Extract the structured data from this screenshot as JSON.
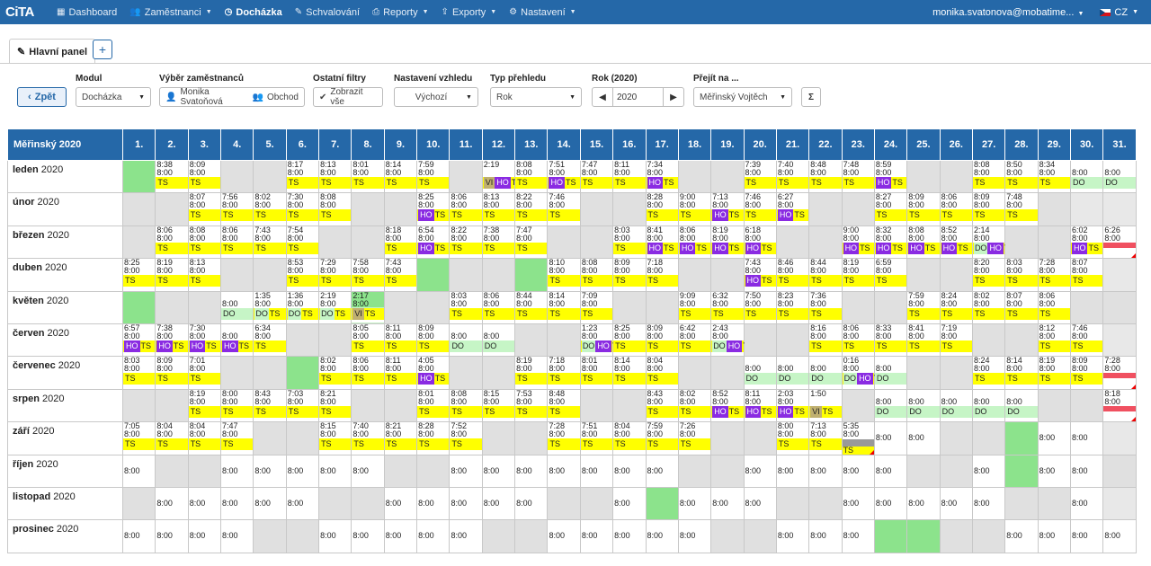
{
  "nav": {
    "logo": "CiTA",
    "items": [
      {
        "label": "Dashboard",
        "icon": "grid-icon",
        "caret": false
      },
      {
        "label": "Zaměstnanci",
        "icon": "users-icon",
        "caret": true
      },
      {
        "label": "Docházka",
        "icon": "clock-icon",
        "caret": false,
        "active": true
      },
      {
        "label": "Schvalování",
        "icon": "check-icon",
        "caret": false
      },
      {
        "label": "Reporty",
        "icon": "print-icon",
        "caret": true
      },
      {
        "label": "Exporty",
        "icon": "export-icon",
        "caret": true
      },
      {
        "label": "Nastavení",
        "icon": "gear-icon",
        "caret": true
      }
    ],
    "user": "monika.svatonova@mobatime...",
    "lang": "CZ"
  },
  "tabs": {
    "main_label": "Hlavní panel",
    "add_label": "+"
  },
  "filters": {
    "back_label": "Zpět",
    "modul_label": "Modul",
    "modul_value": "Docházka",
    "employee_label": "Výběr zaměstnanců",
    "employee_name": "Monika Svatoňová",
    "employee_group": "Obchod",
    "other_label": "Ostatní filtry",
    "other_button": "Zobrazit vše",
    "view_label": "Nastavení vzhledu",
    "view_value": "Výchozí",
    "type_label": "Typ přehledu",
    "type_value": "Rok",
    "year_label": "Rok (2020)",
    "year_value": "2020",
    "goto_label": "Přejít na ...",
    "goto_value": "Měřinský Vojtěch",
    "sigma": "Σ"
  },
  "grid": {
    "header_name": "Měřinský",
    "header_year": "2020",
    "days": [
      "1.",
      "2.",
      "3.",
      "4.",
      "5.",
      "6.",
      "7.",
      "8.",
      "9.",
      "10.",
      "11.",
      "12.",
      "13.",
      "14.",
      "15.",
      "16.",
      "17.",
      "18.",
      "19.",
      "20.",
      "21.",
      "22.",
      "23.",
      "24.",
      "25.",
      "26.",
      "27.",
      "28.",
      "29.",
      "30.",
      "31."
    ],
    "months": [
      {
        "name": "leden",
        "year": "2020",
        "cells": [
          "G",
          "8:38|8:00|TS",
          "8:09|8:00|TS",
          "W",
          "W",
          "8:17|8:00|TS",
          "8:13|8:00|TS",
          "8:01|8:00|TS",
          "8:14|8:00|TS",
          "7:59|8:00|TS",
          "W",
          "2:19||VI,HO,TS",
          "8:08|8:00|TS",
          "7:51|8:00|HO,TS",
          "7:47|8:00|TS",
          "8:11|8:00|TS",
          "7:34|8:00|HO,TS",
          "W",
          "W",
          "7:39|8:00|TS",
          "7:40|8:00|TS",
          "8:48|8:00|TS",
          "7:48|8:00|TS",
          "8:59|8:00|HO,TS",
          "W",
          "W",
          "8:08|8:00|TS",
          "8:50|8:00|TS",
          "8:34|8:00|TS",
          "|8:00|DO",
          "|8:00|DO"
        ]
      },
      {
        "name": "únor",
        "year": "2020",
        "cells": [
          "W",
          "W",
          "8:07|8:00|TS",
          "7:56|8:00|TS",
          "8:02|8:00|TS",
          "7:30|8:00|TS",
          "8:08|8:00|TS",
          "W",
          "W",
          "8:25|8:00|HO,TS",
          "8:06|8:00|TS",
          "8:13|8:00|TS",
          "8:22|8:00|TS",
          "7:46|8:00|TS",
          "W",
          "W",
          "8:28|8:00|TS",
          "9:00|8:00|TS",
          "7:13|8:00|HO,TS",
          "7:46|8:00|TS",
          "6:27|8:00|HO,TS",
          "W",
          "W",
          "8:27|8:00|TS",
          "8:09|8:00|TS",
          "8:06|8:00|TS",
          "8:09|8:00|TS",
          "7:48|8:00|TS",
          "W",
          "E",
          "E"
        ]
      },
      {
        "name": "březen",
        "year": "2020",
        "cells": [
          "W",
          "8:06|8:00|TS",
          "8:08|8:00|TS",
          "8:06|8:00|TS",
          "7:43|8:00|TS",
          "7:54|8:00|TS",
          "W",
          "W",
          "8:18|8:00|TS",
          "6:54|8:00|HO,TS",
          "8:22|8:00|TS",
          "7:38|8:00|TS",
          "7:47|8:00|TS",
          "W",
          "W",
          "8:03|8:00|TS",
          "8:41|8:00|HO,TS",
          "8:06|8:00|HO,TS",
          "8:19|8:00|HO,TS",
          "6:18|8:00|HO,TS",
          "W",
          "W",
          "9:00|8:00|HO,TS",
          "8:32|8:00|HO,TS",
          "8:08|8:00|HO,TS",
          "8:52|8:00|HO,TS",
          "2:14|8:00|DO,HO,TS",
          "W",
          "W",
          "6:02|8:00|HO,TS",
          "6:26|8:00|RED"
        ]
      },
      {
        "name": "duben",
        "year": "2020",
        "cells": [
          "8:25|8:00|TS",
          "8:19|8:00|TS",
          "8:13|8:00|TS",
          "W",
          "W",
          "8:53|8:00|TS",
          "7:29|8:00|TS",
          "7:58|8:00|TS",
          "7:43|8:00|TS",
          "G",
          "W",
          "W",
          "G",
          "8:10|8:00|TS",
          "8:08|8:00|TS",
          "8:09|8:00|TS",
          "7:18|8:00|TS",
          "W",
          "W",
          "7:43|8:00|HO,TS",
          "8:46|8:00|TS",
          "8:44|8:00|TS",
          "8:19|8:00|TS",
          "6:59|8:00|TS",
          "W",
          "W",
          "8:20|8:00|TS",
          "8:03|8:00|TS",
          "7:28|8:00|TS",
          "8:07|8:00|TS",
          "E"
        ]
      },
      {
        "name": "květen",
        "year": "2020",
        "cells": [
          "G",
          "W",
          "W",
          "|8:00|DO",
          "1:35|8:00|DO,TS",
          "1:36|8:00|DO,TS",
          "2:19|8:00|DO,TS",
          "2:17G|8:00|VI,TS",
          "W",
          "W",
          "8:03|8:00|TS",
          "8:06|8:00|TS",
          "8:44|8:00|TS",
          "8:14|8:00|TS",
          "7:09|8:00|TS",
          "W",
          "W",
          "9:09|8:00|TS",
          "6:32|8:00|TS",
          "7:50|8:00|TS",
          "8:23|8:00|TS",
          "7:36|8:00|TS",
          "W",
          "W",
          "7:59|8:00|TS",
          "8:24|8:00|TS",
          "8:02|8:00|TS",
          "8:07|8:00|TS",
          "8:06|8:00|TS",
          "W",
          "W"
        ]
      },
      {
        "name": "červen",
        "year": "2020",
        "cells": [
          "6:57|8:00|HO,TS",
          "7:38|8:00|HO,TS",
          "7:30|8:00|HO,TS",
          "|8:00|HO,TS",
          "6:34|8:00|TS",
          "W",
          "W",
          "8:05|8:00|TS",
          "8:11|8:00|TS",
          "8:09|8:00|TS",
          "|8:00|DO",
          "|8:00|DO",
          "W",
          "W",
          "1:23|8:00|DO,HO,TS",
          "8:25|8:00|TS",
          "8:09|8:00|TS",
          "6:42|8:00|TS",
          "2:43|8:00|DO,HO,TS",
          "W",
          "W",
          "8:16|8:00|TS",
          "8:06|8:00|TS",
          "8:33|8:00|TS",
          "8:41|8:00|TS",
          "7:19|8:00|TS",
          "W",
          "W",
          "8:12|8:00|TS",
          "7:46|8:00|TS",
          "E"
        ]
      },
      {
        "name": "červenec",
        "year": "2020",
        "cells": [
          "8:03|8:00|TS",
          "8:09|8:00|TS",
          "7:01|8:00|TS",
          "W",
          "W",
          "G",
          "8:02|8:00|TS",
          "8:06|8:00|TS",
          "8:11|8:00|TS",
          "4:05|8:00|HO,TS",
          "W",
          "W",
          "8:19|8:00|TS",
          "7:18|8:00|TS",
          "8:01|8:00|TS",
          "8:14|8:00|TS",
          "8:04|8:00|TS",
          "W",
          "W",
          "|8:00|DO",
          "|8:00|DO",
          "|8:00|DO",
          "0:16|8:00|DO,HO,TS",
          "|8:00|DO",
          "W",
          "W",
          "8:24|8:00|TS",
          "8:14|8:00|TS",
          "8:19|8:00|TS",
          "8:09|8:00|TS",
          "7:28|8:00|RED"
        ]
      },
      {
        "name": "srpen",
        "year": "2020",
        "cells": [
          "W",
          "W",
          "8:19|8:00|TS",
          "8:00|8:00|TS",
          "8:43|8:00|TS",
          "7:03|8:00|TS",
          "8:21|8:00|TS",
          "W",
          "W",
          "8:01|8:00|TS",
          "8:08|8:00|TS",
          "8:15|8:00|TS",
          "7:53|8:00|TS",
          "8:48|8:00|TS",
          "W",
          "W",
          "8:43|8:00|TS",
          "8:02|8:00|TS",
          "8:52|8:00|HO,TS",
          "8:11|8:00|HO,TS",
          "2:03|8:00|HO,TS",
          "1:50||VI,TS",
          "W",
          "|8:00|DO",
          "|8:00|DO",
          "|8:00|DO",
          "|8:00|DO",
          "|8:00|DO",
          "W",
          "W",
          "8:18|8:00|RED"
        ]
      },
      {
        "name": "září",
        "year": "2020",
        "cells": [
          "7:05|8:00|TS",
          "8:04|8:00|TS",
          "8:04|8:00|TS",
          "7:47|8:00|TS",
          "W",
          "W",
          "8:15|8:00|TS",
          "7:40|8:00|TS",
          "8:21|8:00|TS",
          "8:28|8:00|TS",
          "7:52|8:00|TS",
          "W",
          "W",
          "7:28|8:00|TS",
          "7:51|8:00|TS",
          "8:04|8:00|TS",
          "7:59|8:00|TS",
          "7:26|8:00|TS",
          "W",
          "W",
          "8:00|8:00|TS",
          "7:13|8:00|TS",
          "5:35|8:00|GRAY",
          "P",
          "P",
          "W",
          "W",
          "G",
          "P",
          "P",
          "E"
        ]
      },
      {
        "name": "říjen",
        "year": "2020",
        "cells": [
          "P",
          "W",
          "W",
          "P",
          "P",
          "P",
          "P",
          "P",
          "W",
          "W",
          "P",
          "P",
          "P",
          "P",
          "P",
          "P",
          "P",
          "W",
          "W",
          "P",
          "P",
          "P",
          "P",
          "P",
          "W",
          "W",
          "P",
          "G",
          "P",
          "P",
          "W"
        ]
      },
      {
        "name": "listopad",
        "year": "2020",
        "cells": [
          "W",
          "P",
          "P",
          "P",
          "P",
          "P",
          "W",
          "W",
          "P",
          "P",
          "P",
          "P",
          "P",
          "W",
          "W",
          "P",
          "G",
          "P",
          "P",
          "P",
          "W",
          "W",
          "P",
          "P",
          "P",
          "P",
          "P",
          "W",
          "W",
          "P",
          "E"
        ]
      },
      {
        "name": "prosinec",
        "year": "2020",
        "cells": [
          "P",
          "P",
          "P",
          "P",
          "W",
          "W",
          "P",
          "P",
          "P",
          "P",
          "P",
          "W",
          "W",
          "P",
          "P",
          "P",
          "P",
          "P",
          "W",
          "W",
          "P",
          "P",
          "P",
          "G",
          "G",
          "W",
          "W",
          "P",
          "P",
          "P",
          "P"
        ]
      }
    ]
  },
  "colors": {
    "nav": "#2568a8",
    "ts": "#ffff00",
    "ho": "#8a2be2",
    "do": "#c6f5c6",
    "green": "#8ce38c",
    "weekend": "#e0e0e0"
  }
}
